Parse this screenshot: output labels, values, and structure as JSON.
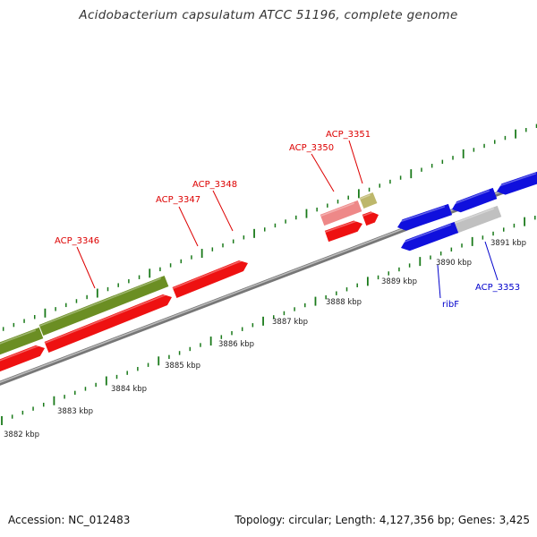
{
  "title": "Acidobacterium capsulatum ATCC 51196, complete genome",
  "footer": {
    "accession": "Accession: NC_012483",
    "summary": "Topology: circular; Length: 4,127,356 bp; Genes: 3,425"
  },
  "colors": {
    "forward_gene": "#ee1111",
    "forward_gene_light": "#ee8888",
    "olive_feature": "#6b8e23",
    "tan_feature": "#bdb76b",
    "reverse_gene": "#1010dd",
    "grey_feature": "#c0c0c0",
    "backbone": "#888888",
    "tick": "#1a7a1a",
    "forward_label": "#dd0000",
    "reverse_label": "#0000cc"
  },
  "scale": {
    "unit": "kbp",
    "labels": [
      "3882 kbp",
      "3883 kbp",
      "3884 kbp",
      "3885 kbp",
      "3886 kbp",
      "3887 kbp",
      "3888 kbp",
      "3889 kbp",
      "3890 kbp",
      "3891 kbp"
    ]
  },
  "gene_labels": [
    {
      "text": "ACP_3346",
      "strand": "forward"
    },
    {
      "text": "ACP_3347",
      "strand": "forward"
    },
    {
      "text": "ACP_3348",
      "strand": "forward"
    },
    {
      "text": "ACP_3350",
      "strand": "forward"
    },
    {
      "text": "ACP_3351",
      "strand": "forward"
    },
    {
      "text": "ribF",
      "strand": "reverse"
    },
    {
      "text": "ACP_3353",
      "strand": "reverse"
    }
  ]
}
